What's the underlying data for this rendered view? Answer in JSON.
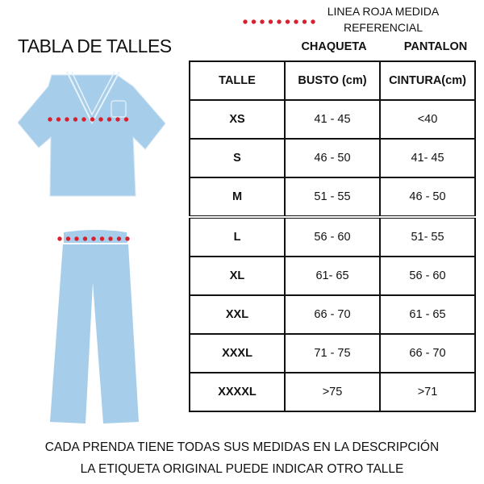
{
  "title": "TABLA DE TALLES",
  "legend": {
    "line1": "LINEA ROJA MEDIDA",
    "line2": "REFERENCIAL",
    "dot_color": "#d7212e"
  },
  "garment_color": "#a6cde9",
  "groups": {
    "jacket": "CHAQUETA",
    "pants": "PANTALON"
  },
  "table": {
    "headers": [
      "TALLE",
      "BUSTO (cm)",
      "CINTURA(cm)"
    ],
    "rows": [
      [
        "XS",
        "41 - 45",
        "<40"
      ],
      [
        "S",
        "46 - 50",
        "41- 45"
      ],
      [
        "M",
        "51 - 55",
        "46 - 50"
      ],
      [
        "L",
        "56 - 60",
        "51- 55"
      ],
      [
        "XL",
        "61- 65",
        "56 - 60"
      ],
      [
        "XXL",
        "66 - 70",
        "61 - 65"
      ],
      [
        "XXXL",
        "71 - 75",
        "66 - 70"
      ],
      [
        "XXXXL",
        ">75",
        ">71"
      ]
    ]
  },
  "footer": {
    "line1": "CADA PRENDA TIENE TODAS SUS MEDIDAS EN LA DESCRIPCIÓN",
    "line2": "LA ETIQUETA ORIGINAL PUEDE INDICAR OTRO TALLE"
  }
}
